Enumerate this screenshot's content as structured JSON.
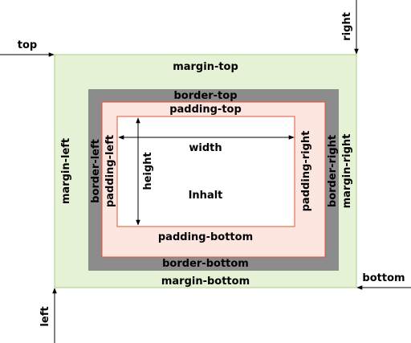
{
  "colors": {
    "margin_fill": "#e6f2d6",
    "margin_stroke": "#a9cf87",
    "border_fill": "#8c8c8c",
    "padding_fill": "#fde5e0",
    "padding_stroke": "#e0553a",
    "content_fill": "#ffffff",
    "content_stroke": "#e0553a",
    "arrow": "#000000"
  },
  "labels": {
    "top": "top",
    "right": "right",
    "left": "left",
    "bottom": "bottom",
    "margin_top": "margin-top",
    "margin_bottom": "margin-bottom",
    "margin_left": "margin-left",
    "margin_right": "margin-right",
    "border_top": "border-top",
    "border_bottom": "border-bottom",
    "border_left": "border-left",
    "border_right": "border-right",
    "padding_top": "padding-top",
    "padding_bottom": "padding-bottom",
    "padding_left": "padding-left",
    "padding_right": "padding-right",
    "width": "width",
    "height": "height",
    "content": "Inhalt"
  }
}
